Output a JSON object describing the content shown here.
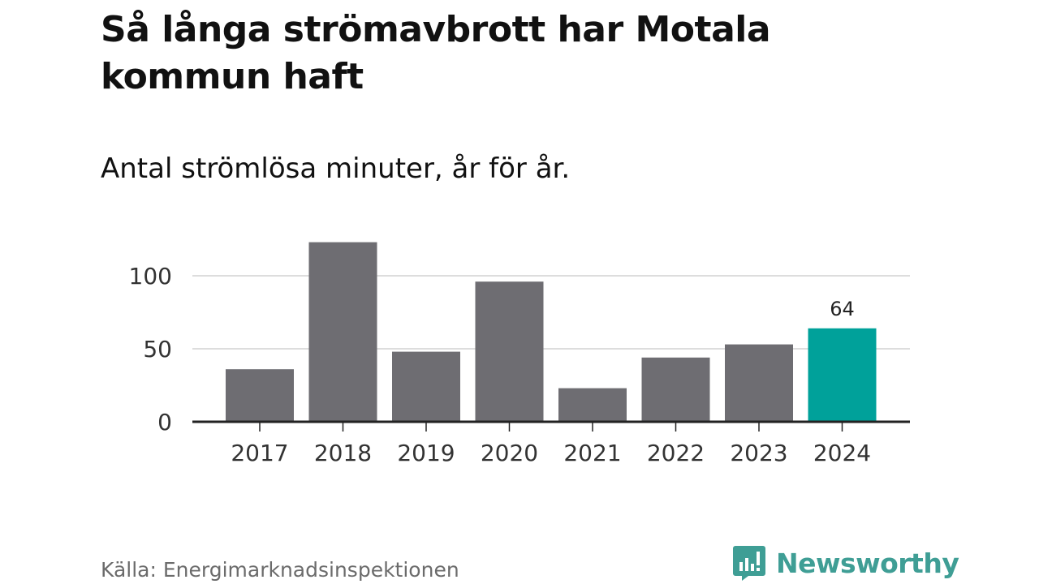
{
  "header": {
    "title": "Så långa strömavbrott har Motala kommun haft",
    "subtitle": "Antal strömlösa minuter, år för år."
  },
  "footer": {
    "source": "Källa: Energimarknadsinspektionen",
    "brand": "Newsworthy"
  },
  "colors": {
    "bar_default": "#6e6d72",
    "bar_highlight": "#00a19a",
    "gridline": "#dddddd",
    "axis": "#222222",
    "brand": "#3f9e95"
  },
  "chart_data": {
    "type": "bar",
    "title": "Så långa strömavbrott har Motala kommun haft",
    "subtitle": "Antal strömlösa minuter, år för år.",
    "xlabel": "",
    "ylabel": "",
    "categories": [
      "2017",
      "2018",
      "2019",
      "2020",
      "2021",
      "2022",
      "2023",
      "2024"
    ],
    "values": [
      36,
      123,
      48,
      96,
      23,
      44,
      53,
      64
    ],
    "highlight_index": 7,
    "data_labels": [
      {
        "category": "2024",
        "text": "64"
      }
    ],
    "ylim": [
      0,
      100
    ],
    "yticks": [
      0,
      50,
      100
    ],
    "grid": true,
    "legend": "none"
  }
}
